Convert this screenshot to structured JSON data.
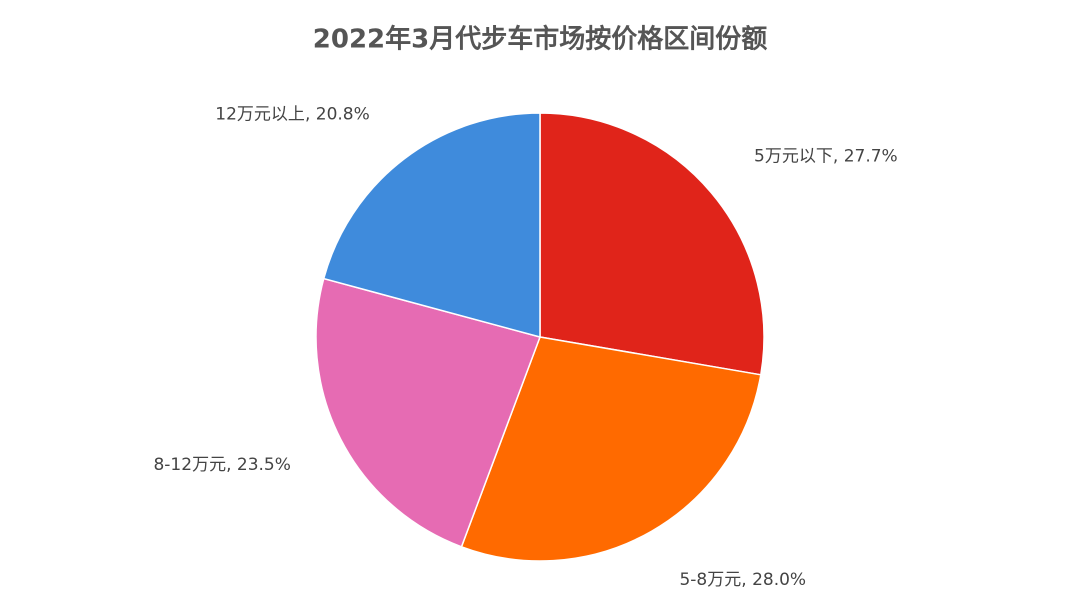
{
  "chart_data": {
    "type": "pie",
    "title": "2022年3月代步车市场按价格区间份额",
    "categories": [
      "5万元以下",
      "5-8万元",
      "8-12万元",
      "12万元以上"
    ],
    "values": [
      27.7,
      28.0,
      23.5,
      20.8
    ],
    "value_labels": [
      "27.7%",
      "28.0%",
      "23.5%",
      "20.8%"
    ],
    "label_separator": ", ",
    "colors": [
      "#e0241a",
      "#ff6a00",
      "#e66bb3",
      "#3f8bdc"
    ]
  }
}
